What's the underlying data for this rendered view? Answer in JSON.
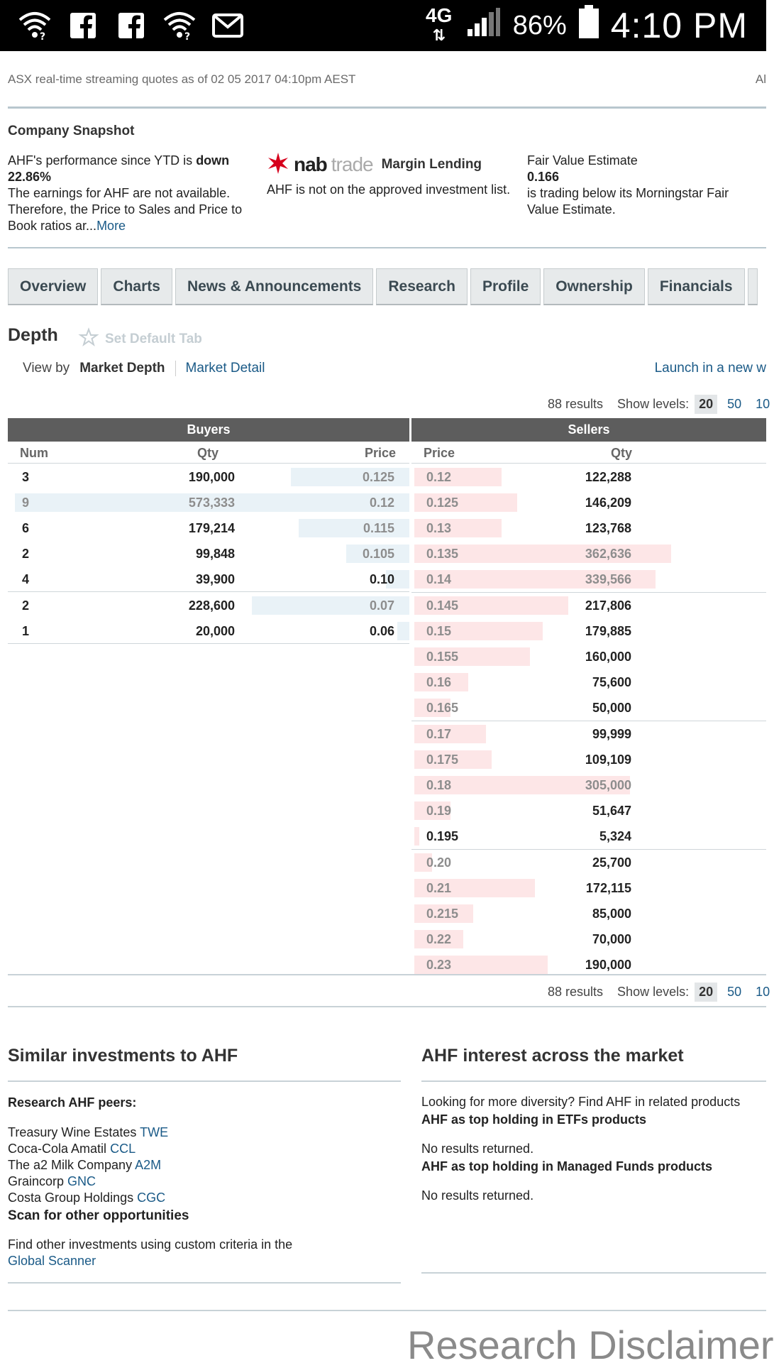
{
  "status_bar": {
    "network": "4G",
    "battery": "86%",
    "time": "4:10 PM",
    "icons": [
      "wifi-question-icon",
      "facebook-icon",
      "facebook-icon",
      "wifi-question-icon",
      "gmail-icon"
    ]
  },
  "quote_note": "ASX real-time streaming quotes as of 02 05 2017 04:10pm AEST",
  "quote_note_right": "Al",
  "snapshot": {
    "title": "Company Snapshot",
    "perf_prefix": "AHF's performance since YTD is ",
    "perf_word": "down",
    "perf_value": "22.86%",
    "earnings_text": "The earnings for AHF are not available. Therefore, the Price to Sales and Price to Book ratios ar...",
    "more_link": "More",
    "nab_brand": "nab",
    "nab_brand2": "trade",
    "margin_label": "Margin Lending",
    "margin_text": "AHF is not on the approved investment list.",
    "fair_label": "Fair Value Estimate",
    "fair_value": "0.166",
    "fair_text": "is trading below its Morningstar Fair Value Estimate."
  },
  "tabs": [
    "Overview",
    "Charts",
    "News & Announcements",
    "Research",
    "Profile",
    "Ownership",
    "Financials"
  ],
  "depth": {
    "title": "Depth",
    "set_default": "Set Default Tab",
    "view_by": "View by",
    "view_market_depth": "Market Depth",
    "view_market_detail": "Market Detail",
    "launch": "Launch in a new w",
    "results": "88 results",
    "show_levels": "Show levels:",
    "levels": [
      "20",
      "50",
      "10"
    ],
    "buyers_header": "Buyers",
    "sellers_header": "Sellers",
    "col_num": "Num",
    "col_qty": "Qty",
    "col_price": "Price",
    "buyers": [
      {
        "num": "3",
        "qty": "190,000",
        "price": "0.125",
        "fill": 0.3,
        "grey_price": true,
        "grey_all": false
      },
      {
        "num": "9",
        "qty": "573,333",
        "price": "0.12",
        "fill": 1.0,
        "grey_price": true,
        "grey_all": true
      },
      {
        "num": "6",
        "qty": "179,214",
        "price": "0.115",
        "fill": 0.28,
        "grey_price": true,
        "grey_all": false
      },
      {
        "num": "2",
        "qty": "99,848",
        "price": "0.105",
        "fill": 0.16,
        "grey_price": true,
        "grey_all": false
      },
      {
        "num": "4",
        "qty": "39,900",
        "price": "0.10",
        "fill": 0.06,
        "grey_price": false,
        "grey_all": false
      },
      {
        "num": "2",
        "qty": "228,600",
        "price": "0.07",
        "fill": 0.4,
        "grey_price": true,
        "grey_all": false
      },
      {
        "num": "1",
        "qty": "20,000",
        "price": "0.06",
        "fill": 0.03,
        "grey_price": false,
        "grey_all": false
      }
    ],
    "sellers": [
      {
        "price": "0.12",
        "qty": "122,288",
        "fill": 0.34,
        "grey_qty": false
      },
      {
        "price": "0.125",
        "qty": "146,209",
        "fill": 0.4,
        "grey_qty": false
      },
      {
        "price": "0.13",
        "qty": "123,768",
        "fill": 0.34,
        "grey_qty": false
      },
      {
        "price": "0.135",
        "qty": "362,636",
        "fill": 1.0,
        "grey_qty": true
      },
      {
        "price": "0.14",
        "qty": "339,566",
        "fill": 0.94,
        "grey_qty": true
      },
      {
        "price": "0.145",
        "qty": "217,806",
        "fill": 0.6,
        "grey_qty": false
      },
      {
        "price": "0.15",
        "qty": "179,885",
        "fill": 0.5,
        "grey_qty": false
      },
      {
        "price": "0.155",
        "qty": "160,000",
        "fill": 0.45,
        "grey_qty": false
      },
      {
        "price": "0.16",
        "qty": "75,600",
        "fill": 0.21,
        "grey_qty": false
      },
      {
        "price": "0.165",
        "qty": "50,000",
        "fill": 0.14,
        "grey_qty": false
      },
      {
        "price": "0.17",
        "qty": "99,999",
        "fill": 0.28,
        "grey_qty": false
      },
      {
        "price": "0.175",
        "qty": "109,109",
        "fill": 0.3,
        "grey_qty": false
      },
      {
        "price": "0.18",
        "qty": "305,000",
        "fill": 0.84,
        "grey_qty": true
      },
      {
        "price": "0.19",
        "qty": "51,647",
        "fill": 0.14,
        "grey_qty": false
      },
      {
        "price": "0.195",
        "qty": "5,324",
        "fill": 0.02,
        "grey_qty": false
      },
      {
        "price": "0.20",
        "qty": "25,700",
        "fill": 0.07,
        "grey_qty": false
      },
      {
        "price": "0.21",
        "qty": "172,115",
        "fill": 0.47,
        "grey_qty": false
      },
      {
        "price": "0.215",
        "qty": "85,000",
        "fill": 0.23,
        "grey_qty": false
      },
      {
        "price": "0.22",
        "qty": "70,000",
        "fill": 0.19,
        "grey_qty": false
      },
      {
        "price": "0.23",
        "qty": "190,000",
        "fill": 0.52,
        "grey_qty": false
      }
    ]
  },
  "similar": {
    "title": "Similar investments to AHF",
    "research_label": "Research AHF peers:",
    "peers": [
      {
        "name": "Treasury Wine Estates",
        "code": "TWE"
      },
      {
        "name": "Coca-Cola Amatil",
        "code": "CCL"
      },
      {
        "name": "The a2 Milk Company",
        "code": "A2M"
      },
      {
        "name": "Graincorp",
        "code": "GNC"
      },
      {
        "name": "Costa Group Holdings",
        "code": "CGC"
      }
    ],
    "scan_label": "Scan for other opportunities",
    "find_text": "Find other investments using custom criteria in the",
    "scanner_link": "Global Scanner"
  },
  "interest": {
    "title": "AHF interest across the market",
    "intro": "Looking for more diversity? Find AHF in related products",
    "etf_label": "AHF as top holding in ETFs products",
    "etf_result": "No results returned.",
    "mf_label": "AHF as top holding in Managed Funds products",
    "mf_result": "No results returned."
  },
  "disclaimer": "Research Disclaimer",
  "colors": {
    "buyer_bar": "#e9f2f7",
    "seller_bar": "#fde6e7",
    "header_bg": "#5d5d5d",
    "link": "#1a5a87"
  }
}
